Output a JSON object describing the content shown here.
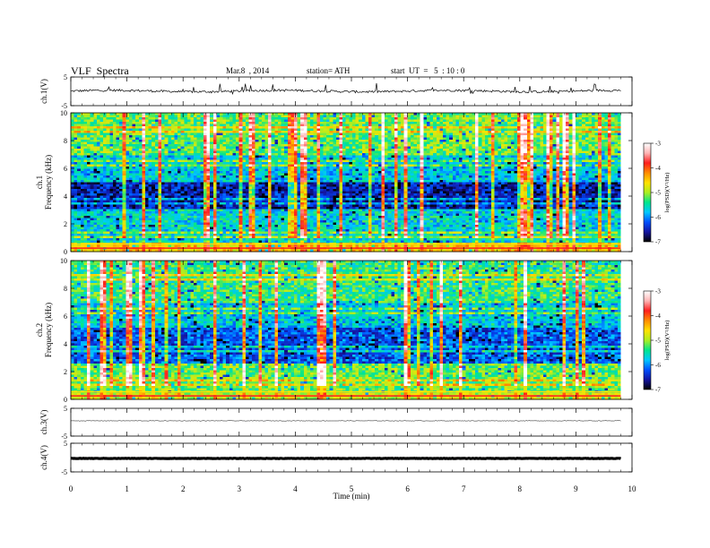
{
  "header": {
    "title": "VLF  Spectra",
    "date": "Mar.8  , 2014",
    "station": "station= ATH",
    "start": "start  UT  =   5  : 10 : 0"
  },
  "chart_data": [
    {
      "type": "line",
      "panel": "ch1-waveform",
      "ylabel": "ch.1(V)",
      "ylim": [
        -5,
        5
      ],
      "yticks": [
        "5",
        "-5"
      ],
      "xlim": [
        0,
        10
      ],
      "x_end": 9.8,
      "baseline": 0.1,
      "color": "#000000"
    },
    {
      "type": "heatmap",
      "panel": "ch1-spectrogram",
      "ylabel": "ch.1",
      "ylabel2": "Frequency  (kHz)",
      "ylim": [
        0,
        10
      ],
      "yticks": [
        "0",
        "2",
        "4",
        "6",
        "8",
        "10"
      ],
      "xlim": [
        0,
        10
      ],
      "x_end": 9.8,
      "colorbar": {
        "label": "log(PSD)(V²/Hz)",
        "range": [
          -7,
          -3
        ],
        "ticks": [
          "-3",
          "-4",
          "-5",
          "-6",
          "-7"
        ],
        "colors": [
          "#000000",
          "#1414a0",
          "#0050ff",
          "#00c8ff",
          "#00e68c",
          "#aaee22",
          "#ffe100",
          "#ff8c00",
          "#ff1e1e",
          "#ffb4b4",
          "#ffffff"
        ]
      }
    },
    {
      "type": "heatmap",
      "panel": "ch2-spectrogram",
      "ylabel": "ch.2",
      "ylabel2": "Frequency  (kHz)",
      "ylim": [
        0,
        10
      ],
      "yticks": [
        "0",
        "2",
        "4",
        "6",
        "8",
        "10"
      ],
      "xlim": [
        0,
        10
      ],
      "x_end": 9.8,
      "colorbar": {
        "label": "log(PSD)(V²/Hz)",
        "range": [
          -7,
          -3
        ],
        "ticks": [
          "-3",
          "-4",
          "-5",
          "-6",
          "-7"
        ],
        "colors": [
          "#000000",
          "#1414a0",
          "#0050ff",
          "#00c8ff",
          "#00e68c",
          "#aaee22",
          "#ffe100",
          "#ff8c00",
          "#ff1e1e",
          "#ffb4b4",
          "#ffffff"
        ]
      }
    },
    {
      "type": "line",
      "panel": "ch3-waveform",
      "ylabel": "ch.3(V)",
      "ylim": [
        -5,
        5
      ],
      "yticks": [
        "5",
        "-5"
      ],
      "xlim": [
        0,
        10
      ],
      "x_end": 9.8,
      "baseline": 0.5,
      "color": "#000000"
    },
    {
      "type": "line",
      "panel": "ch4-waveform",
      "ylabel": "ch.4(V)",
      "ylim": [
        -5,
        5
      ],
      "yticks": [
        "5",
        "-5"
      ],
      "xlim": [
        0,
        10
      ],
      "x_end": 9.8,
      "baseline": -0.3,
      "color": "#000000"
    }
  ],
  "xaxis": {
    "label": "Time  (min)",
    "ticks": [
      "0",
      "1",
      "2",
      "3",
      "4",
      "5",
      "6",
      "7",
      "8",
      "9",
      "10"
    ],
    "range": [
      0,
      10
    ]
  }
}
